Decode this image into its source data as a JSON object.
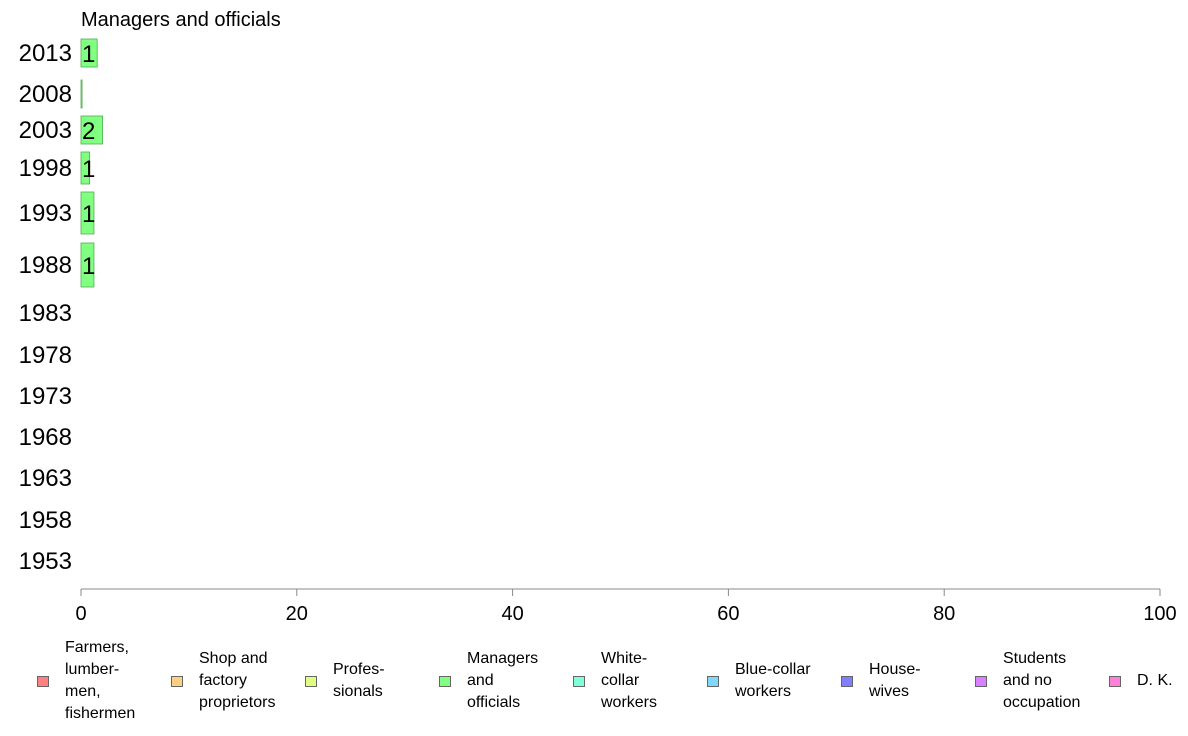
{
  "chart_data": {
    "type": "bar",
    "orientation": "horizontal",
    "title": "Managers and officials",
    "categories": [
      "2013",
      "2008",
      "2003",
      "1998",
      "1993",
      "1988",
      "1983",
      "1978",
      "1973",
      "1968",
      "1963",
      "1958",
      "1953"
    ],
    "values": [
      1.5,
      0.1,
      2.0,
      0.8,
      1.2,
      1.2,
      null,
      null,
      null,
      null,
      null,
      null,
      null
    ],
    "value_labels": [
      "1",
      "",
      "2",
      "1",
      "1",
      "1",
      "",
      "",
      "",
      "",
      "",
      "",
      ""
    ],
    "xlim": [
      0,
      100
    ],
    "xticks": [
      "0",
      "20",
      "40",
      "60",
      "80",
      "100"
    ],
    "bar_color": "#80ff80",
    "bar_border": "#55aa55",
    "grid": false
  },
  "legend": [
    {
      "label": "Farmers,\nlumber-\nmen,\nfishermen",
      "color": "#ff8080"
    },
    {
      "label": "Shop and\nfactory\nproprietors",
      "color": "#ffd080"
    },
    {
      "label": "Profes-\nsionals",
      "color": "#e0ff80"
    },
    {
      "label": "Managers\nand\nofficials",
      "color": "#80ff80"
    },
    {
      "label": "White-\ncollar\nworkers",
      "color": "#80ffd8"
    },
    {
      "label": "Blue-collar\nworkers",
      "color": "#80d8ff"
    },
    {
      "label": "House-\nwives",
      "color": "#8080ff"
    },
    {
      "label": "Students\nand no\noccupation",
      "color": "#d880ff"
    },
    {
      "label": "D. K.",
      "color": "#ff80d8"
    }
  ]
}
